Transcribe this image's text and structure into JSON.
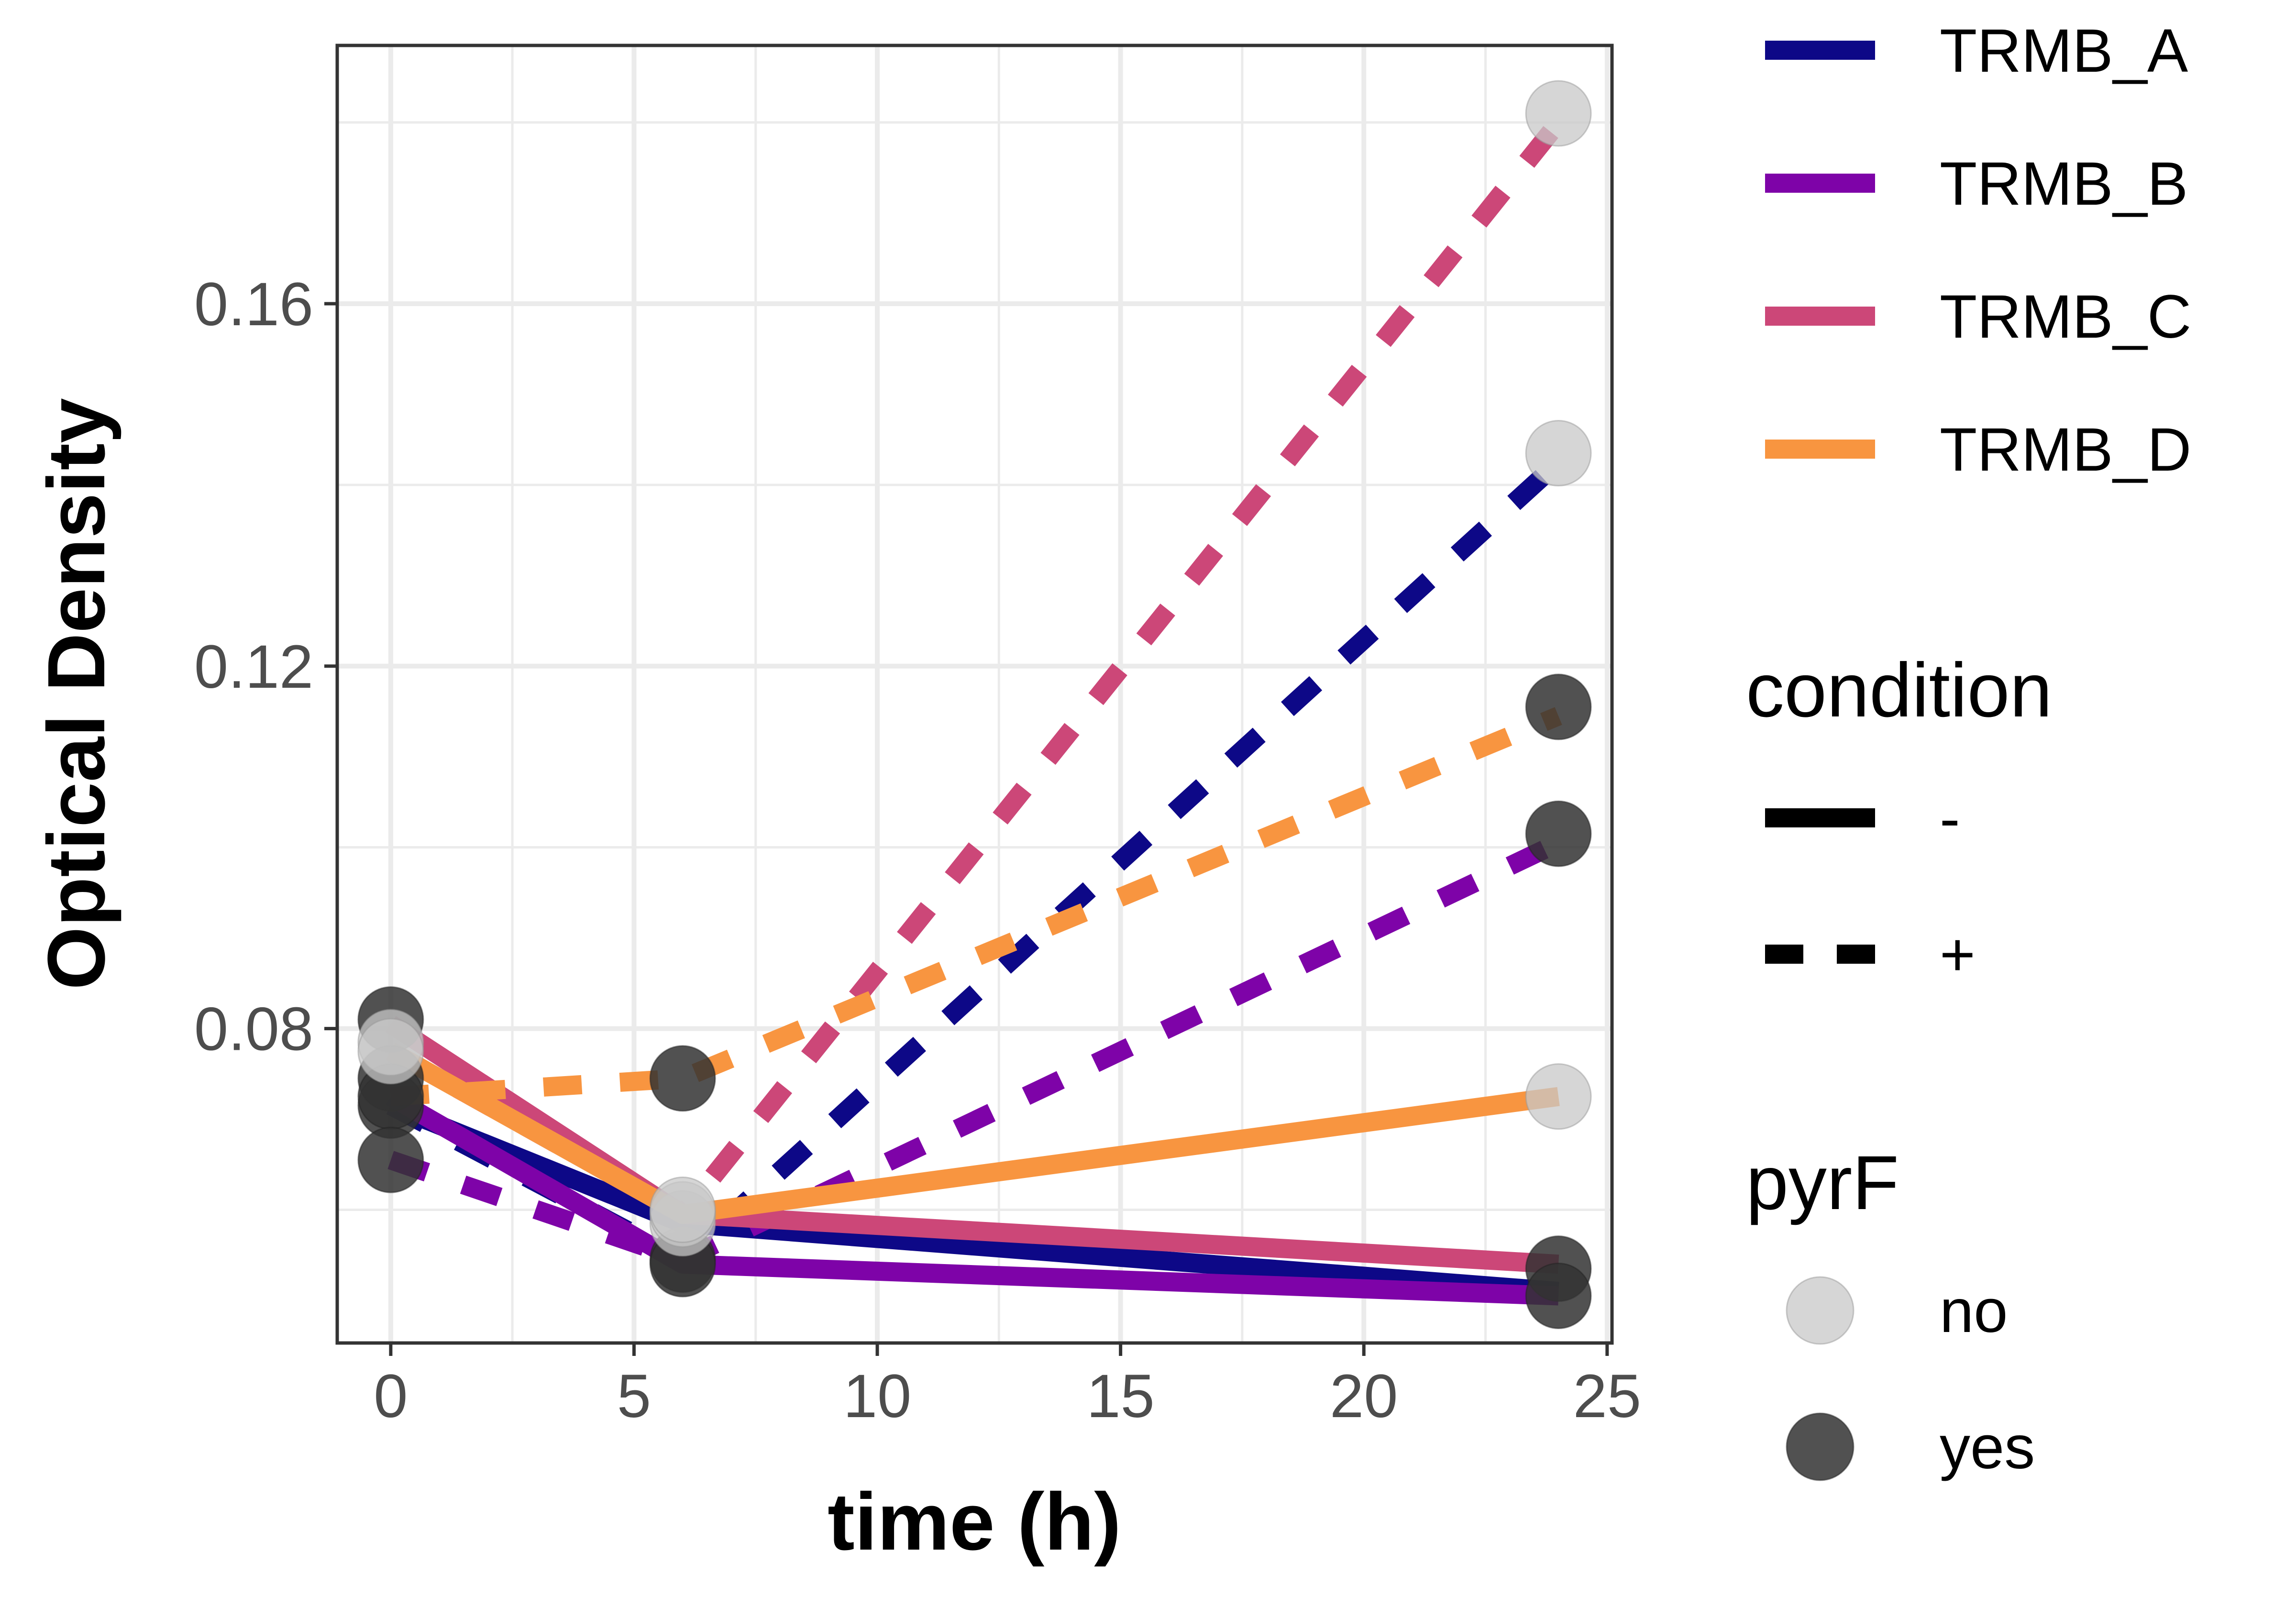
{
  "chart_data": {
    "type": "line",
    "xlabel": "time (h)",
    "ylabel": "Optical Density",
    "xlim": [
      -1.1,
      25.1
    ],
    "ylim": [
      0.0453,
      0.1885
    ],
    "x_ticks": [
      0,
      5,
      10,
      15,
      20,
      25
    ],
    "x_tick_labels": [
      "0",
      "5",
      "10",
      "15",
      "20",
      "25"
    ],
    "y_ticks": [
      0.08,
      0.12,
      0.16
    ],
    "y_tick_labels": [
      "0.08",
      "0.12",
      "0.16"
    ],
    "grid": true,
    "legend_position": "right",
    "colors": {
      "TRMB_A": "#0d0887",
      "TRMB_B": "#7e03a8",
      "TRMB_C": "#cc4778",
      "TRMB_D": "#f89540",
      "pyrF_no": "#c8c8c8",
      "pyrF_yes": "#333333"
    },
    "legends": {
      "strain": {
        "title": "",
        "items": [
          "TRMB_A",
          "TRMB_B",
          "TRMB_C",
          "TRMB_D"
        ]
      },
      "condition": {
        "title": "condition",
        "items": [
          "-",
          "+"
        ]
      },
      "pyrF": {
        "title": "pyrF",
        "items": [
          "no",
          "yes"
        ]
      }
    },
    "series": [
      {
        "strain": "TRMB_A",
        "condition": "-",
        "x": [
          0,
          6,
          24
        ],
        "y": [
          0.0715,
          0.0585,
          0.051
        ]
      },
      {
        "strain": "TRMB_A",
        "condition": "+",
        "x": [
          0,
          6,
          24
        ],
        "y": [
          0.0715,
          0.0545,
          0.1425
        ]
      },
      {
        "strain": "TRMB_B",
        "condition": "-",
        "x": [
          0,
          6,
          24
        ],
        "y": [
          0.0725,
          0.054,
          0.0505
        ]
      },
      {
        "strain": "TRMB_B",
        "condition": "+",
        "x": [
          0,
          6,
          24
        ],
        "y": [
          0.0655,
          0.0545,
          0.1005
        ]
      },
      {
        "strain": "TRMB_C",
        "condition": "-",
        "x": [
          0,
          6,
          24
        ],
        "y": [
          0.0805,
          0.0595,
          0.054
        ]
      },
      {
        "strain": "TRMB_C",
        "condition": "+",
        "x": [
          0,
          6,
          24
        ],
        "y": [
          0.0775,
          0.0595,
          0.18
        ]
      },
      {
        "strain": "TRMB_D",
        "condition": "-",
        "x": [
          0,
          6,
          24
        ],
        "y": [
          0.0775,
          0.0595,
          0.0725
        ]
      },
      {
        "strain": "TRMB_D",
        "condition": "+",
        "x": [
          0,
          6,
          24
        ],
        "y": [
          0.0725,
          0.0745,
          0.1145
        ]
      }
    ],
    "points": [
      {
        "x": 0,
        "y": 0.081,
        "pyrF": "yes"
      },
      {
        "x": 0,
        "y": 0.0745,
        "pyrF": "yes"
      },
      {
        "x": 0,
        "y": 0.0715,
        "pyrF": "yes"
      },
      {
        "x": 0,
        "y": 0.0725,
        "pyrF": "yes"
      },
      {
        "x": 0,
        "y": 0.0655,
        "pyrF": "yes"
      },
      {
        "x": 0,
        "y": 0.0785,
        "pyrF": "no"
      },
      {
        "x": 0,
        "y": 0.0775,
        "pyrF": "no"
      },
      {
        "x": 6,
        "y": 0.0745,
        "pyrF": "yes"
      },
      {
        "x": 6,
        "y": 0.0545,
        "pyrF": "yes"
      },
      {
        "x": 6,
        "y": 0.054,
        "pyrF": "yes"
      },
      {
        "x": 6,
        "y": 0.0585,
        "pyrF": "no"
      },
      {
        "x": 6,
        "y": 0.0595,
        "pyrF": "no"
      },
      {
        "x": 6,
        "y": 0.06,
        "pyrF": "no"
      },
      {
        "x": 24,
        "y": 0.181,
        "pyrF": "no"
      },
      {
        "x": 24,
        "y": 0.1435,
        "pyrF": "no"
      },
      {
        "x": 24,
        "y": 0.0725,
        "pyrF": "no"
      },
      {
        "x": 24,
        "y": 0.1155,
        "pyrF": "yes"
      },
      {
        "x": 24,
        "y": 0.1015,
        "pyrF": "yes"
      },
      {
        "x": 24,
        "y": 0.0535,
        "pyrF": "yes"
      },
      {
        "x": 24,
        "y": 0.0505,
        "pyrF": "yes"
      }
    ]
  }
}
